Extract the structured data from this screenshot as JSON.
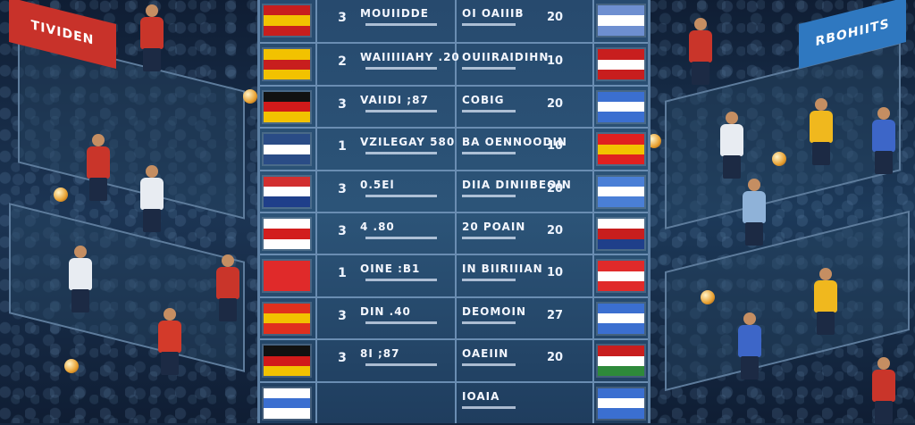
{
  "left_banner": {
    "text": "TIVIDEN"
  },
  "right_banner": {
    "text": "RBOHIITS"
  },
  "colors": {
    "board": "#274a6e",
    "grid": "#6a8db2",
    "banner_left": "#c8322a",
    "banner_right": "#2f78c0"
  },
  "rows": [
    {
      "rank": "3",
      "team": "MOUIIDDE",
      "opp": "OI OAIIIB",
      "pts": "20",
      "left_flag": [
        "#c81e1e",
        "#f2c200",
        "#c81e1e"
      ],
      "right_flag": [
        "#6e8fd0",
        "#ffffff",
        "#6e8fd0"
      ]
    },
    {
      "rank": "2",
      "team": "WAIIIIIAHY .20",
      "opp": "OUIIRAIDIHN",
      "pts": "10",
      "left_flag": [
        "#f2c200",
        "#c81e1e",
        "#f2c200"
      ],
      "right_flag": [
        "#c81e1e",
        "#ffffff",
        "#c81e1e"
      ]
    },
    {
      "rank": "3",
      "team": "VAIIDI ;87",
      "opp": "COBIG",
      "pts": "20",
      "left_flag": [
        "#111111",
        "#d11a1a",
        "#f2c200"
      ],
      "right_flag": [
        "#3b6fd0",
        "#ffffff",
        "#3b6fd0"
      ]
    },
    {
      "rank": "1",
      "team": "VZILEGAY 580",
      "opp": "BA OENNOODIN",
      "pts": "10",
      "left_flag": [
        "#2a4c86",
        "#ffffff",
        "#2a4c86"
      ],
      "right_flag": [
        "#e02020",
        "#f2c200",
        "#e02020"
      ]
    },
    {
      "rank": "3",
      "team": "0.5El",
      "opp": "DIIA DINIIBEOIN",
      "pts": "20",
      "left_flag": [
        "#d23030",
        "#ffffff",
        "#1f3f8a"
      ],
      "right_flag": [
        "#4a7fd6",
        "#ffffff",
        "#4a7fd6"
      ]
    },
    {
      "rank": "3",
      "team": "4 .80",
      "opp": "20 POAIN",
      "pts": "20",
      "left_flag": [
        "#ffffff",
        "#d21e1e",
        "#ffffff"
      ],
      "right_flag": [
        "#ffffff",
        "#c81e1e",
        "#1f3f8a"
      ]
    },
    {
      "rank": "1",
      "team": "OINE :B1",
      "opp": "IN BIIRIIIAN",
      "pts": "10",
      "left_flag": [
        "#e02a2a",
        "#e02a2a",
        "#e02a2a"
      ],
      "right_flag": [
        "#e02a2a",
        "#ffffff",
        "#e02a2a"
      ]
    },
    {
      "rank": "3",
      "team": "DIN .40",
      "opp": "DEOMOIN",
      "pts": "27",
      "left_flag": [
        "#e0301e",
        "#f2c200",
        "#e0301e"
      ],
      "right_flag": [
        "#3b6fd0",
        "#ffffff",
        "#3b6fd0"
      ]
    },
    {
      "rank": "3",
      "team": "8I ;87",
      "opp": "OAEIIN",
      "pts": "20",
      "left_flag": [
        "#111111",
        "#d11a1a",
        "#f2c200"
      ],
      "right_flag": [
        "#c81e1e",
        "#ffffff",
        "#2e8a3a"
      ]
    },
    {
      "rank": "",
      "team": "",
      "opp": "IOAIA",
      "pts": "",
      "left_flag": [
        "#ffffff",
        "#3b6fd0",
        "#ffffff"
      ],
      "right_flag": [
        "#3b6fd0",
        "#ffffff",
        "#3b6fd0"
      ]
    }
  ]
}
